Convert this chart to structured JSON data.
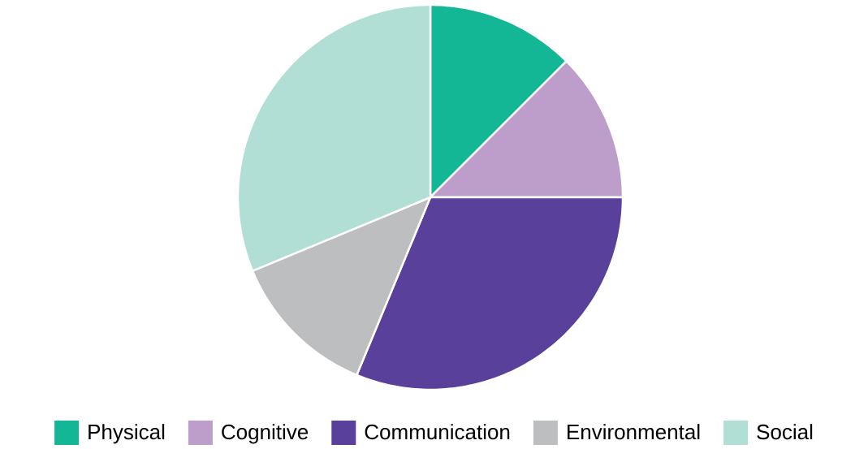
{
  "chart_data": {
    "type": "pie",
    "categories": [
      "Physical",
      "Cognitive",
      "Communication",
      "Environmental",
      "Social"
    ],
    "values": [
      12.5,
      12.5,
      31.25,
      12.5,
      31.25
    ],
    "colors": [
      "#13b795",
      "#bd9dca",
      "#58409b",
      "#bdbec0",
      "#b1ded5"
    ],
    "legend": "bottom"
  }
}
